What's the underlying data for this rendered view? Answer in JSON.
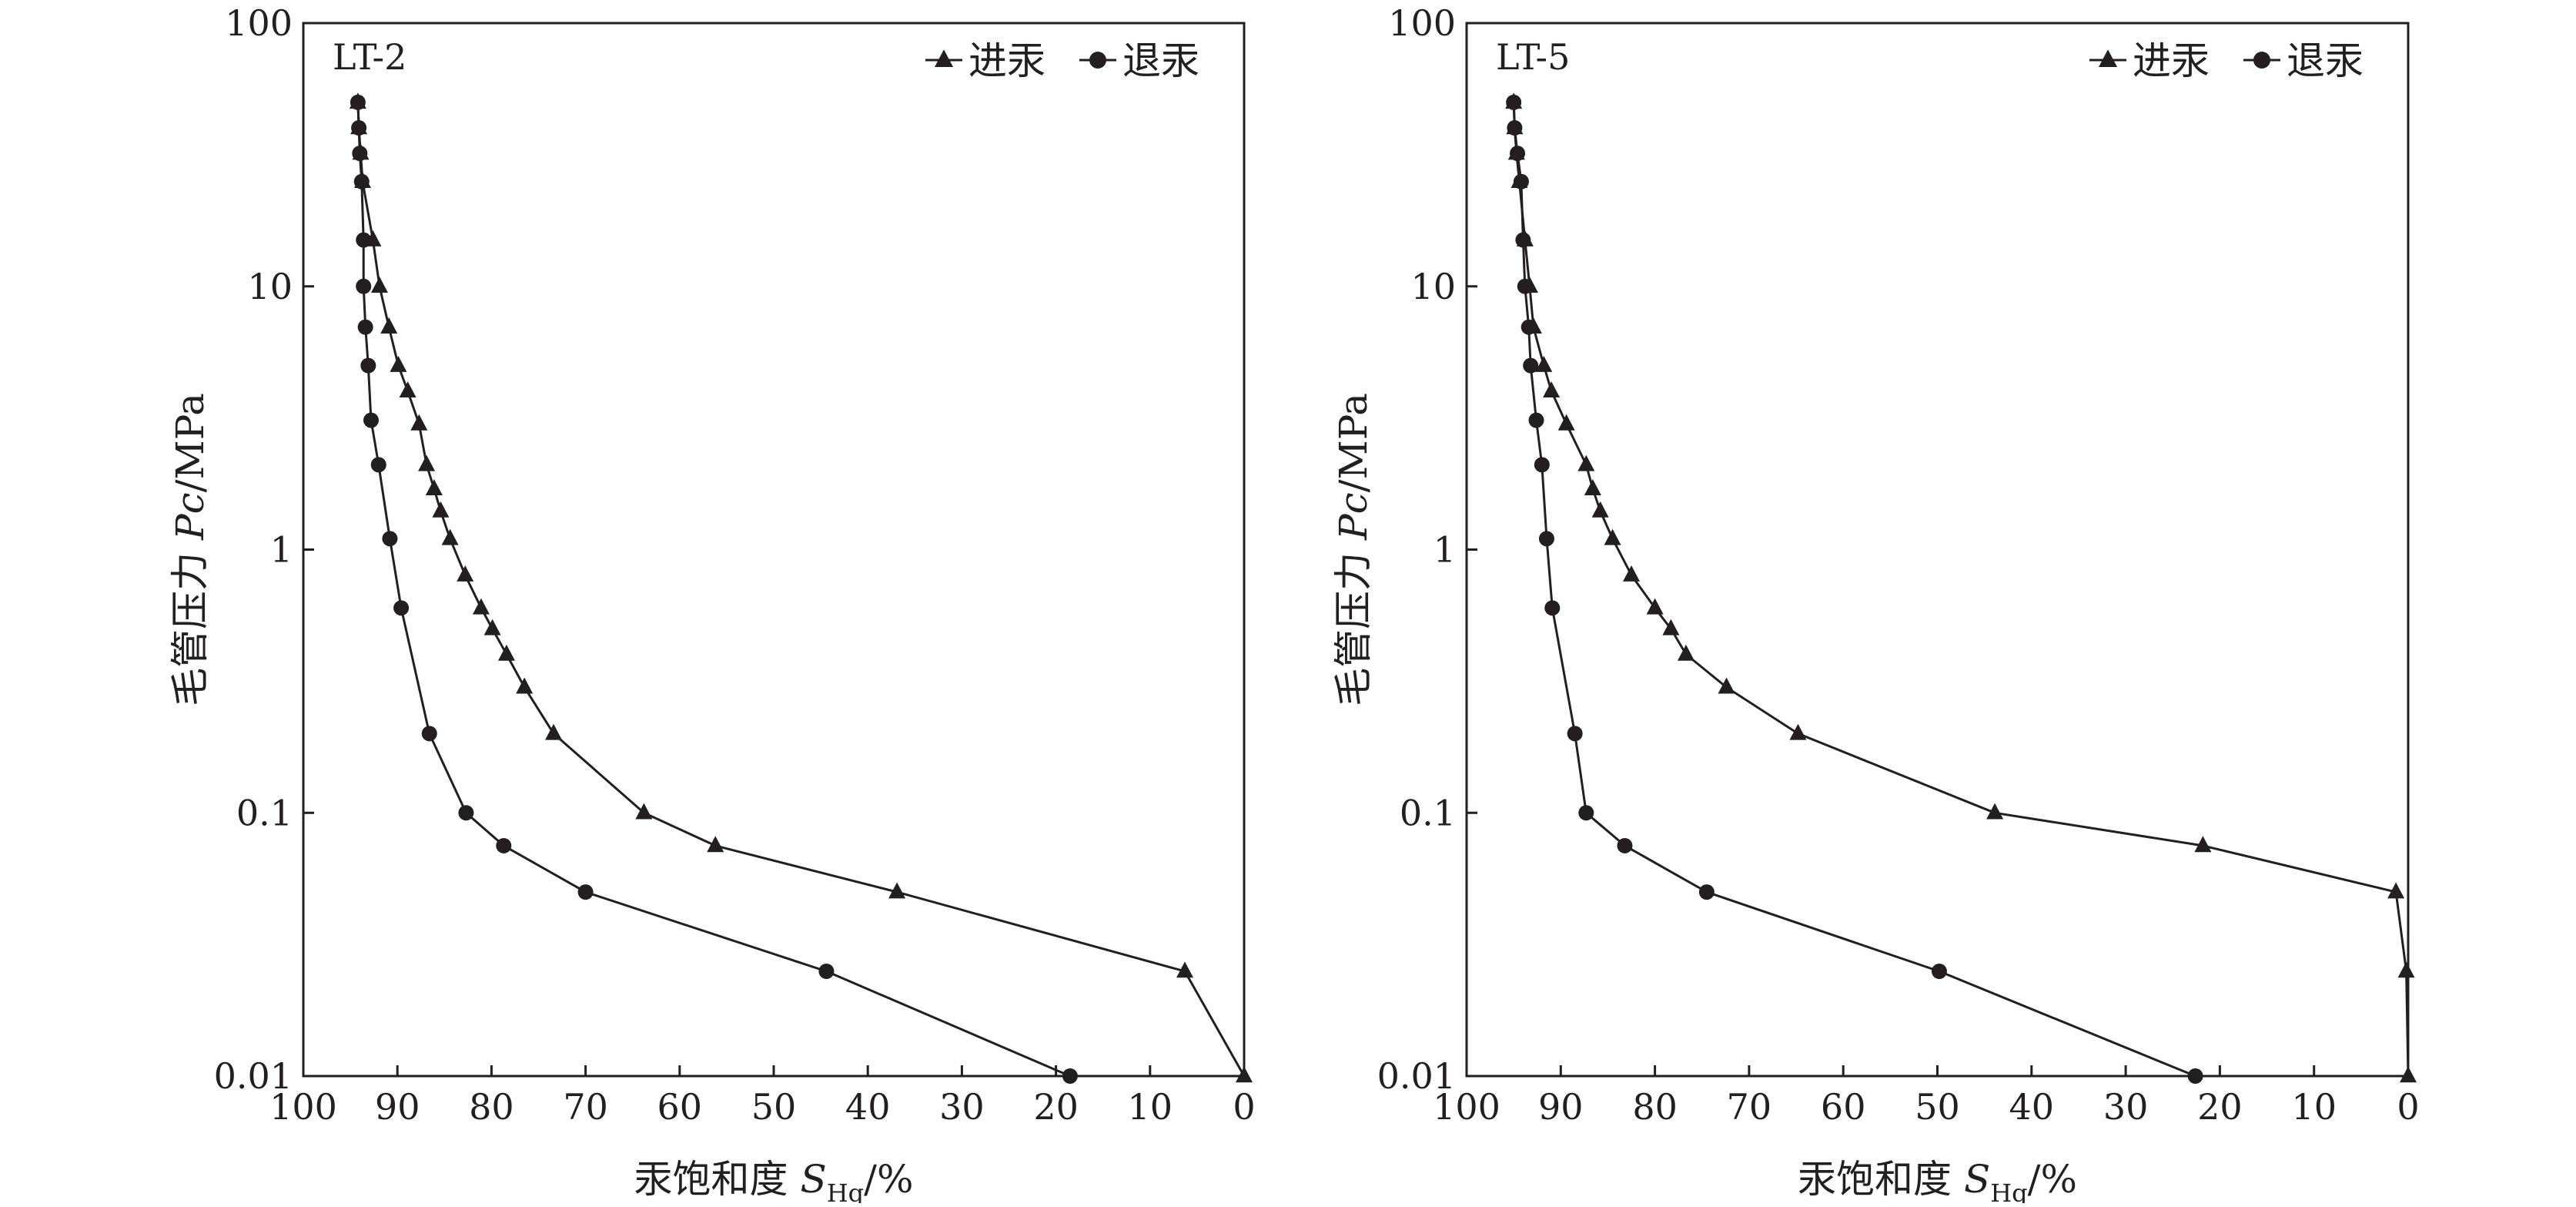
{
  "chart_data": [
    {
      "type": "line",
      "panel_label": "LT-2",
      "xlabel": {
        "main": "汞饱和度 ",
        "symbol": "S",
        "subscript": "Hg",
        "unit": "/%"
      },
      "ylabel": {
        "main": "毛管压力 ",
        "symbol": "Pc",
        "unit": "/MPa"
      },
      "x_axis": {
        "min": 0,
        "max": 100,
        "reversed": true,
        "ticks": [
          100,
          90,
          80,
          70,
          60,
          50,
          40,
          30,
          20,
          10,
          0
        ]
      },
      "y_axis": {
        "min": 0.01,
        "max": 100,
        "scale": "log",
        "ticks": [
          0.01,
          0.1,
          1,
          10,
          100
        ],
        "tick_labels": [
          "0.01",
          "0.1",
          "1",
          "10",
          "100"
        ]
      },
      "legend_position": "top-right",
      "series": [
        {
          "name": "进汞",
          "marker": "triangle",
          "points": [
            [
              94.2,
              50
            ],
            [
              94.1,
              40
            ],
            [
              93.9,
              32
            ],
            [
              93.7,
              25
            ],
            [
              92.6,
              15
            ],
            [
              91.9,
              10
            ],
            [
              90.9,
              7
            ],
            [
              89.9,
              5
            ],
            [
              88.9,
              4
            ],
            [
              87.7,
              3
            ],
            [
              86.9,
              2.1
            ],
            [
              86.1,
              1.7
            ],
            [
              85.4,
              1.4
            ],
            [
              84.4,
              1.1
            ],
            [
              82.8,
              0.8
            ],
            [
              81.1,
              0.6
            ],
            [
              79.9,
              0.5
            ],
            [
              78.4,
              0.4
            ],
            [
              76.5,
              0.3
            ],
            [
              73.4,
              0.2
            ],
            [
              63.8,
              0.1
            ],
            [
              56.2,
              0.075
            ],
            [
              36.9,
              0.05
            ],
            [
              6.3,
              0.025
            ],
            [
              0,
              0.01
            ]
          ]
        },
        {
          "name": "退汞",
          "marker": "circle",
          "points": [
            [
              94.2,
              50
            ],
            [
              94.1,
              40
            ],
            [
              94.0,
              32
            ],
            [
              93.8,
              25
            ],
            [
              93.6,
              15
            ],
            [
              93.6,
              10
            ],
            [
              93.4,
              7
            ],
            [
              93.1,
              5
            ],
            [
              92.8,
              3.1
            ],
            [
              92.0,
              2.1
            ],
            [
              90.8,
              1.1
            ],
            [
              89.6,
              0.6
            ],
            [
              86.6,
              0.2
            ],
            [
              82.7,
              0.1
            ],
            [
              78.7,
              0.075
            ],
            [
              70.0,
              0.05
            ],
            [
              44.4,
              0.025
            ],
            [
              18.5,
              0.01
            ]
          ]
        }
      ]
    },
    {
      "type": "line",
      "panel_label": "LT-5",
      "xlabel": {
        "main": "汞饱和度 ",
        "symbol": "S",
        "subscript": "Hg",
        "unit": "/%"
      },
      "ylabel": {
        "main": "毛管压力 ",
        "symbol": "Pc",
        "unit": "/MPa"
      },
      "x_axis": {
        "min": 0,
        "max": 100,
        "reversed": true,
        "ticks": [
          100,
          90,
          80,
          70,
          60,
          50,
          40,
          30,
          20,
          10,
          0
        ]
      },
      "y_axis": {
        "min": 0.01,
        "max": 100,
        "scale": "log",
        "ticks": [
          0.01,
          0.1,
          1,
          10,
          100
        ],
        "tick_labels": [
          "0.01",
          "0.1",
          "1",
          "10",
          "100"
        ]
      },
      "legend_position": "top-right",
      "series": [
        {
          "name": "进汞",
          "marker": "triangle",
          "points": [
            [
              95.0,
              50
            ],
            [
              94.9,
              40
            ],
            [
              94.7,
              32
            ],
            [
              94.4,
              25
            ],
            [
              93.8,
              15
            ],
            [
              93.3,
              10
            ],
            [
              92.9,
              7
            ],
            [
              91.8,
              5
            ],
            [
              91.0,
              4
            ],
            [
              89.4,
              3
            ],
            [
              87.3,
              2.1
            ],
            [
              86.6,
              1.7
            ],
            [
              85.8,
              1.4
            ],
            [
              84.5,
              1.1
            ],
            [
              82.5,
              0.8
            ],
            [
              80.0,
              0.6
            ],
            [
              78.3,
              0.5
            ],
            [
              76.7,
              0.4
            ],
            [
              72.4,
              0.3
            ],
            [
              64.8,
              0.2
            ],
            [
              43.9,
              0.1
            ],
            [
              21.8,
              0.075
            ],
            [
              1.3,
              0.05
            ],
            [
              0.2,
              0.025
            ],
            [
              0,
              0.01
            ]
          ]
        },
        {
          "name": "退汞",
          "marker": "circle",
          "points": [
            [
              95.0,
              50
            ],
            [
              94.9,
              40
            ],
            [
              94.6,
              32
            ],
            [
              94.2,
              25
            ],
            [
              94.0,
              15
            ],
            [
              93.8,
              10
            ],
            [
              93.4,
              7
            ],
            [
              93.2,
              5
            ],
            [
              92.6,
              3.1
            ],
            [
              92.0,
              2.1
            ],
            [
              91.5,
              1.1
            ],
            [
              90.9,
              0.6
            ],
            [
              88.5,
              0.2
            ],
            [
              87.3,
              0.1
            ],
            [
              83.2,
              0.075
            ],
            [
              74.5,
              0.05
            ],
            [
              49.8,
              0.025
            ],
            [
              22.6,
              0.01
            ]
          ]
        }
      ]
    }
  ]
}
